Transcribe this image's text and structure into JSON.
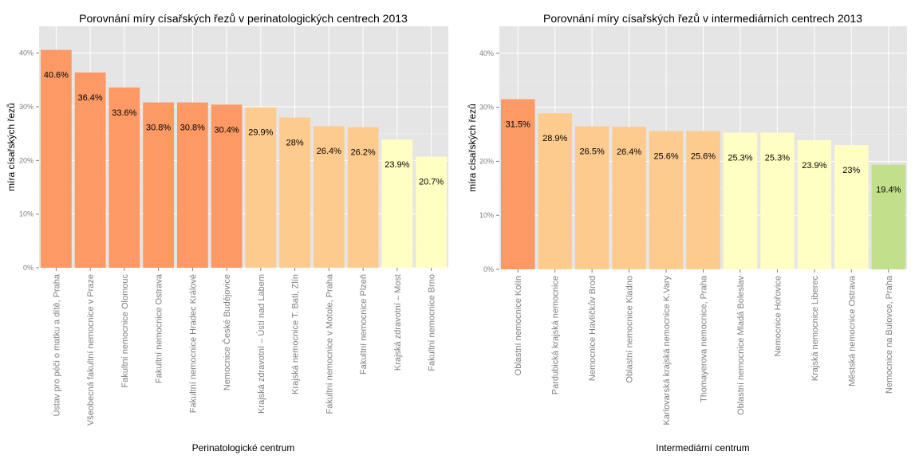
{
  "chart_data": [
    {
      "type": "bar",
      "title": "Porovnání míry císařských řezů v perinatologických centrech 2013",
      "xlabel": "Perinatologické centrum",
      "ylabel": "míra císařských řezů",
      "ylim": [
        0,
        0.45
      ],
      "yticks": [
        "0%",
        "10%",
        "20%",
        "30%",
        "40%"
      ],
      "grid": true,
      "categories": [
        "Ústav pro péči o matku a dítě, Praha",
        "Všeobecná fakultní nemocnice v Praze",
        "Fakultní nemocnice Olomouc",
        "Fakultní nemocnice Ostrava",
        "Fakultní nemocnice Hradec Králové",
        "Nemocnice České Budějovice",
        "Krajská zdravotní – Ústí nad Labem",
        "Krajská nemocnice T. Bati, Zlín",
        "Fakultní nemocnice v Motole, Praha",
        "Fakultní nemocnice Plzeň",
        "Krajská zdravotní – Most",
        "Fakultní nemocnice Brno"
      ],
      "values": [
        0.406,
        0.364,
        0.336,
        0.308,
        0.308,
        0.304,
        0.299,
        0.28,
        0.264,
        0.262,
        0.239,
        0.207
      ],
      "labels": [
        "40.6%",
        "36.4%",
        "33.6%",
        "30.8%",
        "30.8%",
        "30.4%",
        "29.9%",
        "28%",
        "26.4%",
        "26.2%",
        "23.9%",
        "20.7%"
      ],
      "colors": [
        "#fc9964",
        "#fc9964",
        "#fc9964",
        "#fc9964",
        "#fc9964",
        "#fc9964",
        "#fecb8f",
        "#fecb8f",
        "#fecb8f",
        "#fecb8f",
        "#ffffc3",
        "#ffffc3"
      ]
    },
    {
      "type": "bar",
      "title": "Porovnání míry císařských řezů v intermediárních centrech 2013",
      "xlabel": "Intermediární centrum",
      "ylabel": "míra císařských řezů",
      "ylim": [
        0,
        0.45
      ],
      "yticks": [
        "0%",
        "10%",
        "20%",
        "30%",
        "40%"
      ],
      "grid": true,
      "categories": [
        "Oblastní nemocnice Kolín",
        "Pardubická krajská nemocnice",
        "Nemocnice Havlíčkův Brod",
        "Oblastní nemocnice Kladno",
        "Karlovarská krajská nemocnice K.Vary",
        "Thomayerova nemocnice, Praha",
        "Oblastní nemocnice Mladá Boleslav",
        "Nemocnice Hořovice",
        "Krajská nemocnice Liberec",
        "Městská nemocnice Ostrava",
        "Nemocnice na Bulovce, Praha"
      ],
      "values": [
        0.315,
        0.289,
        0.265,
        0.264,
        0.256,
        0.256,
        0.253,
        0.253,
        0.239,
        0.23,
        0.194
      ],
      "labels": [
        "31.5%",
        "28.9%",
        "26.5%",
        "26.4%",
        "25.6%",
        "25.6%",
        "25.3%",
        "25.3%",
        "23.9%",
        "23%",
        "19.4%"
      ],
      "colors": [
        "#fc9964",
        "#fecb8f",
        "#fecb8f",
        "#fecb8f",
        "#fecb8f",
        "#fecb8f",
        "#ffffc3",
        "#ffffc3",
        "#ffffc3",
        "#ffffc3",
        "#c2df8b"
      ]
    }
  ]
}
